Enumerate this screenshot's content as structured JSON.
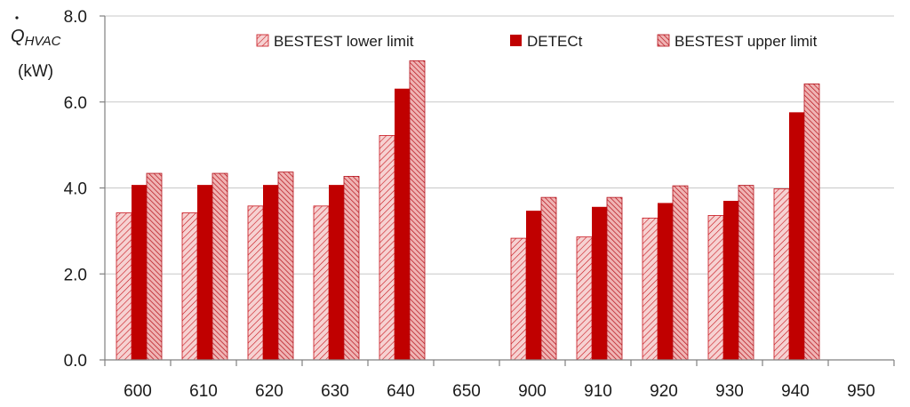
{
  "chart_data": {
    "type": "bar",
    "title": "",
    "ylabel": "Q",
    "ylabel_sub": "HVAC",
    "ylabel_unit": "(kW)",
    "xlabel": "",
    "ylim": [
      0,
      8
    ],
    "yticks": [
      "0.0",
      "2.0",
      "4.0",
      "6.0",
      "8.0"
    ],
    "grid": true,
    "legend_position": "top",
    "categories": [
      "600",
      "610",
      "620",
      "630",
      "640",
      "650",
      "900",
      "910",
      "920",
      "930",
      "940",
      "950"
    ],
    "series": [
      {
        "name": "BESTEST lower limit",
        "values": [
          3.42,
          3.42,
          3.58,
          3.58,
          5.22,
          0,
          2.83,
          2.86,
          3.3,
          3.36,
          3.98,
          0
        ]
      },
      {
        "name": "DETECt",
        "values": [
          4.07,
          4.07,
          4.07,
          4.07,
          6.31,
          0,
          3.47,
          3.56,
          3.65,
          3.7,
          5.76,
          0
        ]
      },
      {
        "name": "BESTEST upper limit",
        "values": [
          4.34,
          4.34,
          4.37,
          4.27,
          6.96,
          0,
          3.78,
          3.78,
          4.05,
          4.06,
          6.42,
          0
        ]
      }
    ],
    "colors": {
      "lower_fill": "#f6d2d2",
      "lower_hatch": "#c8141c",
      "detect": "#c00000",
      "upper_fill": "#f0b4b4",
      "upper_hatch": "#b40f18",
      "grid": "#c8c8c8",
      "axis": "#808080"
    }
  }
}
